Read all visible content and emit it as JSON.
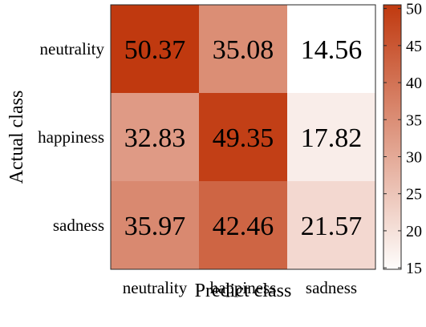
{
  "chart_data": {
    "type": "heatmap",
    "title": "",
    "xlabel": "Predict class",
    "ylabel": "Actual class",
    "x_categories": [
      "neutrality",
      "happiness",
      "sadness"
    ],
    "y_categories": [
      "neutrality",
      "happiness",
      "sadness"
    ],
    "values": [
      [
        50.37,
        35.08,
        14.56
      ],
      [
        32.83,
        49.35,
        17.82
      ],
      [
        35.97,
        42.46,
        21.57
      ]
    ],
    "value_labels": [
      [
        "50.37",
        "35.08",
        "14.56"
      ],
      [
        "32.83",
        "49.35",
        "17.82"
      ],
      [
        "35.97",
        "42.46",
        "21.57"
      ]
    ],
    "colorbar": {
      "range": [
        14.56,
        50.37
      ],
      "ticks": [
        15,
        20,
        25,
        30,
        35,
        40,
        45,
        50
      ],
      "tick_labels": [
        "15",
        "20",
        "25",
        "30",
        "35",
        "40",
        "45",
        "50"
      ],
      "color_low": "#ffffff",
      "color_high": "#c0390f"
    },
    "legend": "colorbar-right",
    "grid": false
  }
}
